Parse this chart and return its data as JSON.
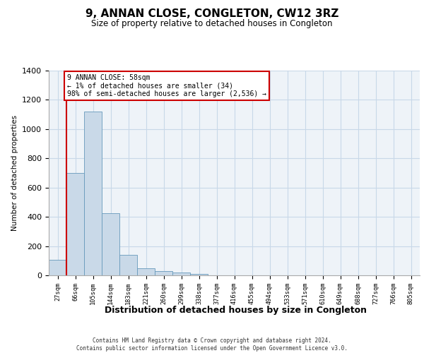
{
  "title": "9, ANNAN CLOSE, CONGLETON, CW12 3RZ",
  "subtitle": "Size of property relative to detached houses in Congleton",
  "xlabel": "Distribution of detached houses by size in Congleton",
  "ylabel": "Number of detached properties",
  "bar_labels": [
    "27sqm",
    "66sqm",
    "105sqm",
    "144sqm",
    "183sqm",
    "221sqm",
    "260sqm",
    "299sqm",
    "338sqm",
    "377sqm",
    "416sqm",
    "455sqm",
    "494sqm",
    "533sqm",
    "571sqm",
    "610sqm",
    "649sqm",
    "688sqm",
    "727sqm",
    "766sqm",
    "805sqm"
  ],
  "bar_values": [
    105,
    700,
    1120,
    425,
    140,
    50,
    30,
    18,
    12,
    0,
    0,
    0,
    0,
    0,
    0,
    0,
    0,
    0,
    0,
    0,
    0
  ],
  "bar_color": "#c9d9e8",
  "bar_edge_color": "#6699bb",
  "grid_color": "#c8d8e8",
  "bg_color": "#eef3f8",
  "ylim": [
    0,
    1400
  ],
  "yticks": [
    0,
    200,
    400,
    600,
    800,
    1000,
    1200,
    1400
  ],
  "annotation_text": "9 ANNAN CLOSE: 58sqm\n← 1% of detached houses are smaller (34)\n98% of semi-detached houses are larger (2,536) →",
  "annotation_box_color": "#ffffff",
  "annotation_box_edge": "#cc0000",
  "vline_color": "#cc0000",
  "footer_line1": "Contains HM Land Registry data © Crown copyright and database right 2024.",
  "footer_line2": "Contains public sector information licensed under the Open Government Licence v3.0."
}
